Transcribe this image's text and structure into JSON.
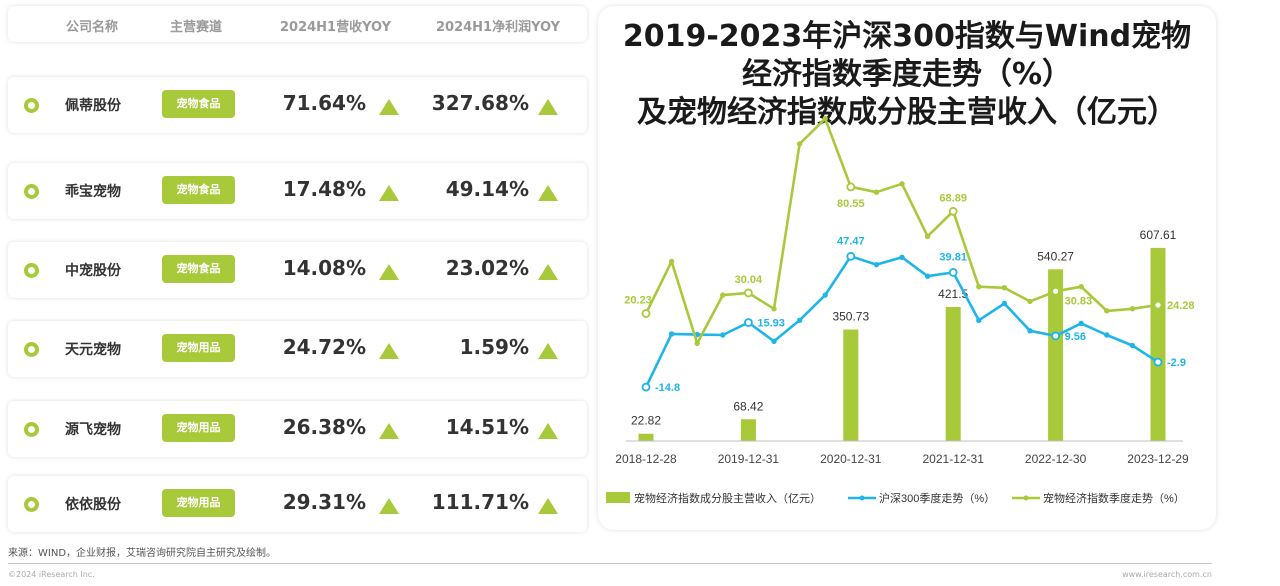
{
  "table": {
    "headers": {
      "name": "公司名称",
      "track": "主营赛道",
      "revenue": "2024H1营收YOY",
      "profit": "2024H1净利润YOY"
    },
    "rows": [
      {
        "name": "佩蒂股份",
        "track": "宠物食品",
        "revenue": "71.64%",
        "profit": "327.68%"
      },
      {
        "name": "乖宝宠物",
        "track": "宠物食品",
        "revenue": "17.48%",
        "profit": "49.14%"
      },
      {
        "name": "中宠股份",
        "track": "宠物食品",
        "revenue": "14.08%",
        "profit": "23.02%"
      },
      {
        "name": "天元宠物",
        "track": "宠物用品",
        "revenue": "24.72%",
        "profit": "1.59%"
      },
      {
        "name": "源飞宠物",
        "track": "宠物用品",
        "revenue": "26.38%",
        "profit": "14.51%"
      },
      {
        "name": "依依股份",
        "track": "宠物用品",
        "revenue": "29.31%",
        "profit": "111.71%"
      }
    ]
  },
  "chart_title": {
    "line1": "2019-2023年沪深300指数与Wind宠物",
    "line2": "经济指数季度走势（%）",
    "line3": "及宠物经济指数成分股主营收入（亿元）"
  },
  "chart_data": {
    "type": "bar+line",
    "x_ticks": [
      "2018-12-28",
      "2019-12-31",
      "2020-12-31",
      "2021-12-31",
      "2022-12-30",
      "2023-12-29"
    ],
    "bars": {
      "name": "宠物经济指数成分股主营收入（亿元）",
      "unit": "亿元",
      "values": [
        22.82,
        68.42,
        350.73,
        421.5,
        540.27,
        607.61
      ]
    },
    "series": [
      {
        "name": "沪深300季度走势（%）",
        "color": "#1fb5e8",
        "values": [
          -14.8,
          10.5,
          10.2,
          10.0,
          15.93,
          7.0,
          17.0,
          29.0,
          47.47,
          43.5,
          47.0,
          38.0,
          39.81,
          17.0,
          25.0,
          12.0,
          9.56,
          15.5,
          10.0,
          5.0,
          -2.9
        ],
        "labels": {
          "0": "-14.8",
          "4": "15.93",
          "8": "47.47",
          "12": "39.81",
          "16": "9.56",
          "20": "-2.9"
        }
      },
      {
        "name": "宠物经济指数季度走势（%）",
        "color": "#a8c93a",
        "values": [
          20.23,
          45.0,
          6.0,
          29.0,
          30.04,
          22.5,
          101.0,
          113.0,
          80.55,
          78.0,
          82.0,
          57.0,
          68.89,
          33.0,
          32.5,
          26.0,
          30.83,
          33.0,
          21.5,
          22.5,
          24.28
        ],
        "labels": {
          "0": "20.23",
          "4": "30.04",
          "8": "80.55",
          "12": "68.89",
          "16": "30.83",
          "20": "24.28"
        }
      }
    ],
    "legend": [
      "宠物经济指数成分股主营收入（亿元）",
      "沪深300季度走势（%）",
      "宠物经济指数季度走势（%）"
    ],
    "bar_color": "#a8c93a",
    "grid": false,
    "legend_position": "bottom"
  },
  "footer": {
    "source": "来源：WIND，企业财报，艾瑞咨询研究院自主研究及绘制。",
    "copyright": "©2024 iResearch Inc.",
    "website": "www.iresearch.com.cn"
  }
}
